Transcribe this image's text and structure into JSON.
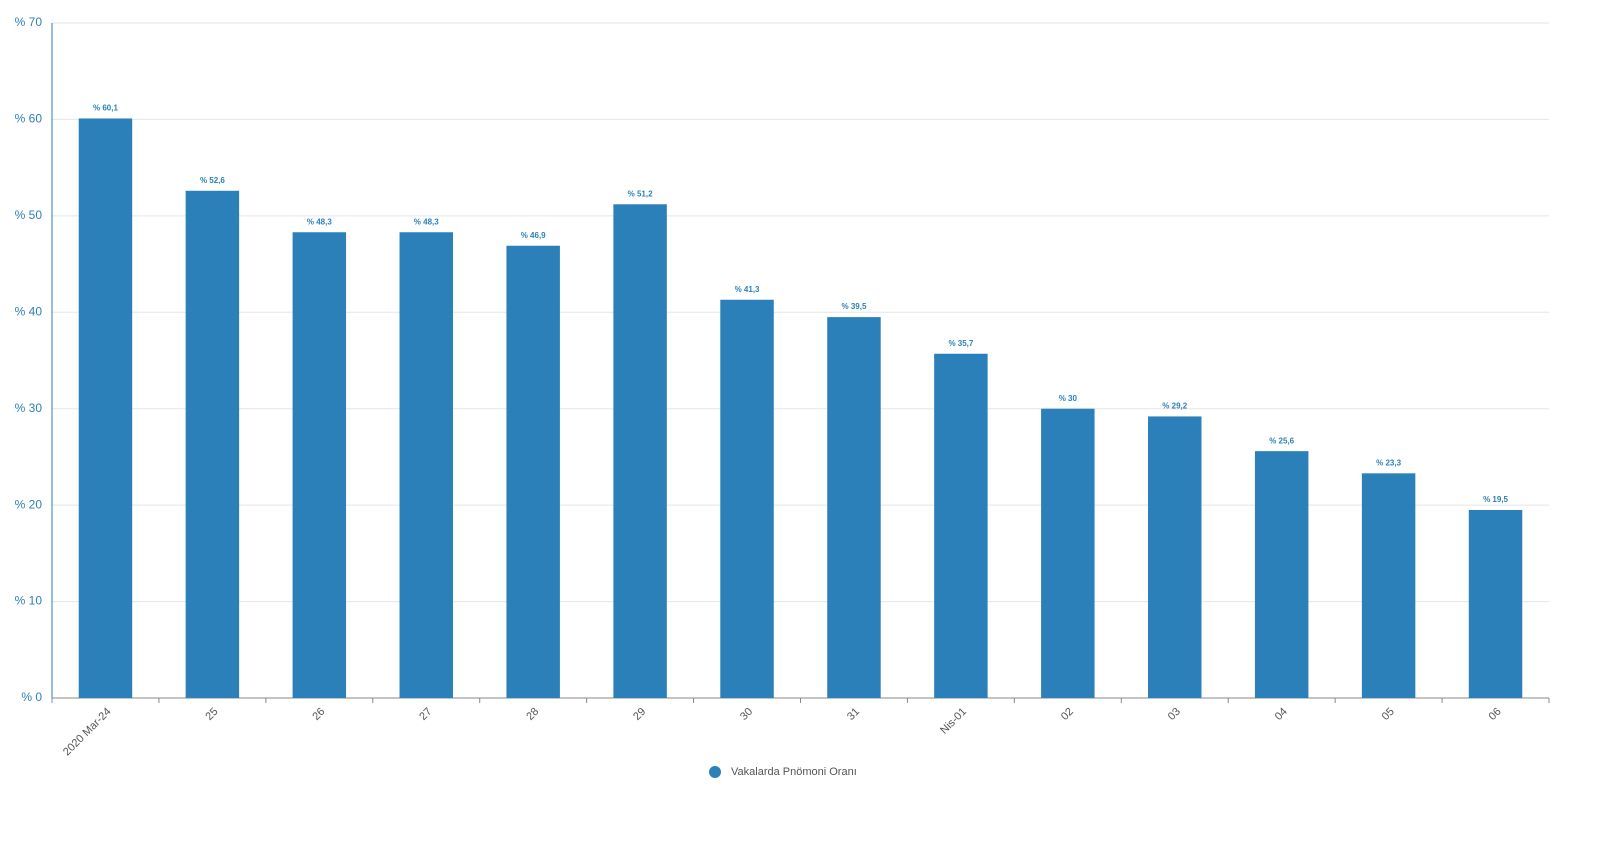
{
  "chart_data": {
    "type": "bar",
    "categories": [
      "2020 Mar-24",
      "25",
      "26",
      "27",
      "28",
      "29",
      "30",
      "31",
      "Nis-01",
      "02",
      "03",
      "04",
      "05",
      "06"
    ],
    "series": [
      {
        "name": "Vakalarda Pnömoni Oranı",
        "color": "#2b80b9",
        "values": [
          60.1,
          52.6,
          48.3,
          48.3,
          46.9,
          51.2,
          41.3,
          39.5,
          35.7,
          30,
          29.2,
          25.6,
          23.3,
          19.5
        ],
        "value_labels": [
          "% 60,1",
          "% 52,6",
          "% 48,3",
          "% 48,3",
          "% 46,9",
          "% 51,2",
          "% 41,3",
          "% 39,5",
          "% 35,7",
          "% 30",
          "% 29,2",
          "% 25,6",
          "% 23,3",
          "% 19,5"
        ]
      }
    ],
    "ylim": [
      0,
      70
    ],
    "yticks": [
      {
        "value": 0,
        "label": "% 0"
      },
      {
        "value": 10,
        "label": "% 10"
      },
      {
        "value": 20,
        "label": "% 20"
      },
      {
        "value": 30,
        "label": "% 30"
      },
      {
        "value": 40,
        "label": "% 40"
      },
      {
        "value": 50,
        "label": "% 50"
      },
      {
        "value": 60,
        "label": "% 60"
      },
      {
        "value": 70,
        "label": "% 70"
      }
    ],
    "grid": true
  }
}
